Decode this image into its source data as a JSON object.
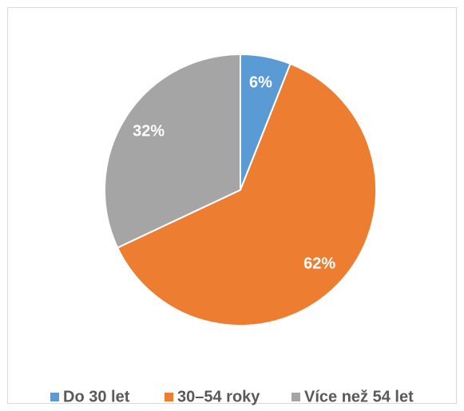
{
  "chart_data": {
    "type": "pie",
    "categories": [
      "Do 30 let",
      "30–54 roky",
      "Více než 54 let"
    ],
    "values": [
      6,
      62,
      32
    ],
    "value_labels": [
      "6%",
      "62%",
      "32%"
    ],
    "colors": [
      "#5b9bd5",
      "#ed7d31",
      "#a5a5a5"
    ],
    "legend": "bottom"
  }
}
